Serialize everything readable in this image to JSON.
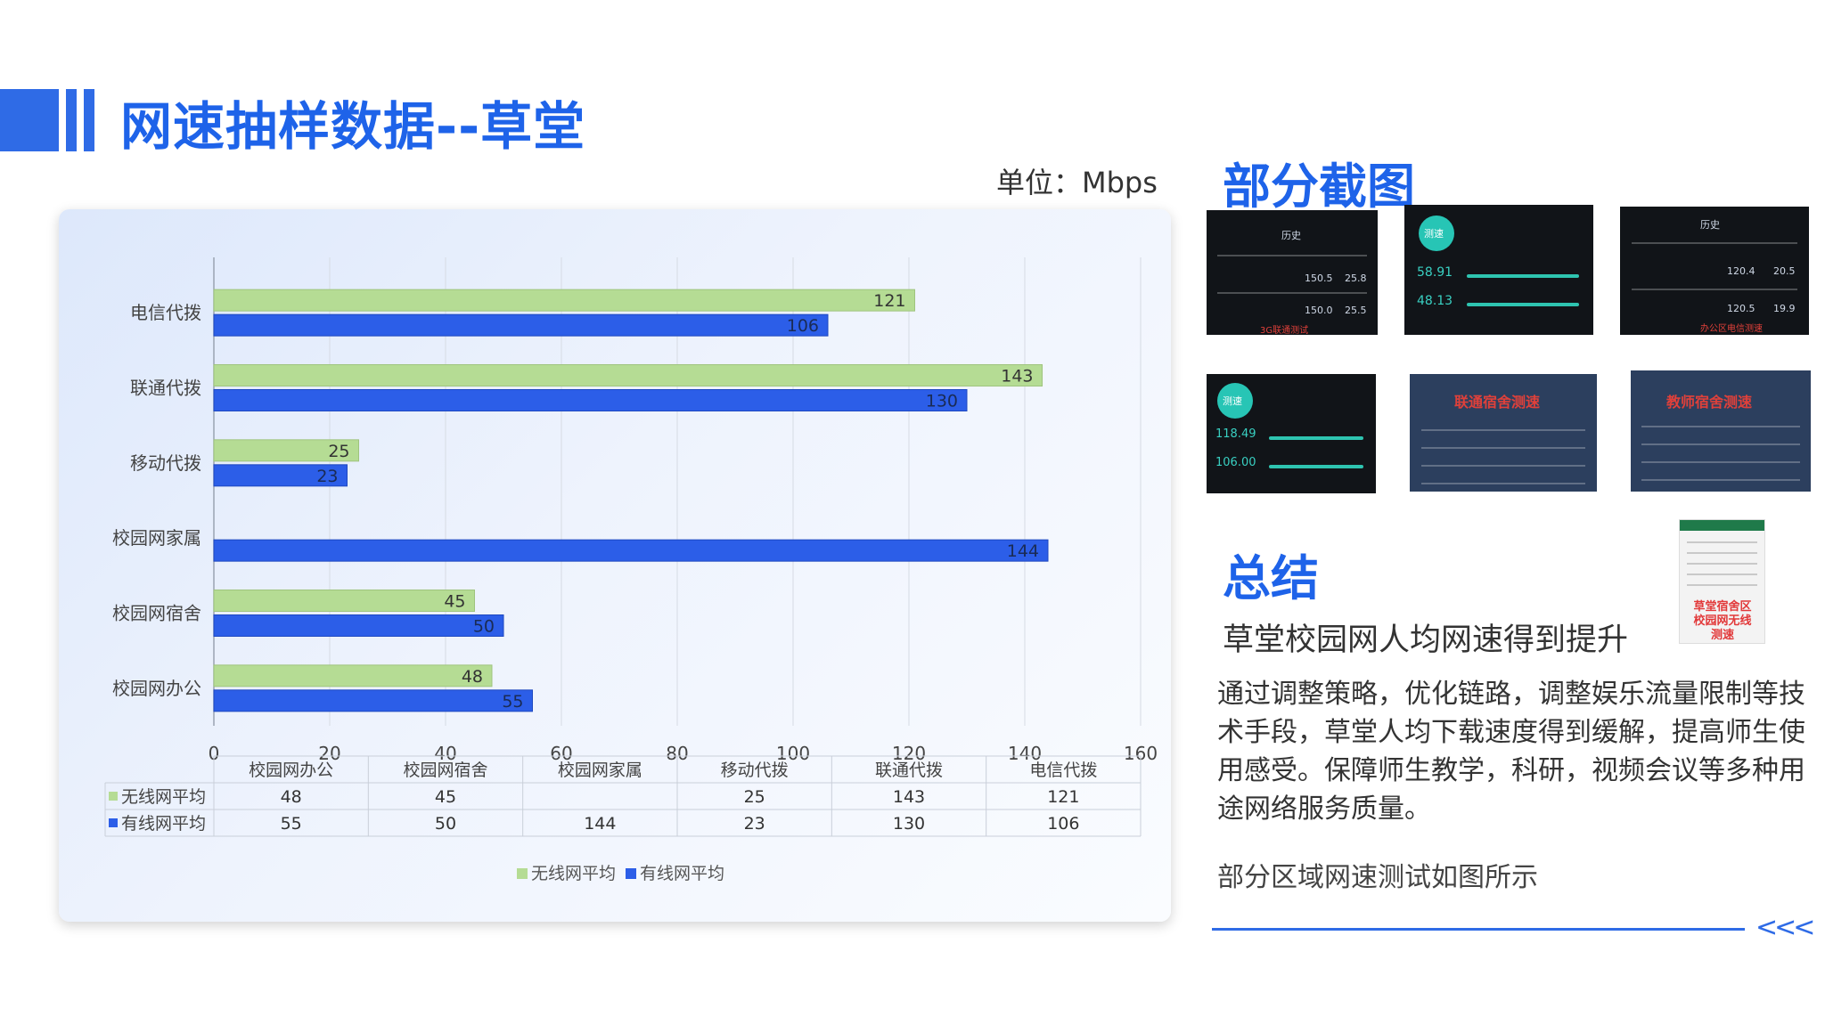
{
  "header": {
    "title": "网速抽样数据--草堂",
    "unit": "单位：Mbps"
  },
  "colors": {
    "accent": "#1e63e9",
    "wireless": "#b5dc94",
    "wired": "#2c5ee8"
  },
  "chart_data": {
    "type": "bar",
    "orientation": "horizontal",
    "categories": [
      "电信代拨",
      "联通代拨",
      "移动代拨",
      "校园网家属",
      "校园网宿舍",
      "校园网办公"
    ],
    "series": [
      {
        "name": "无线网平均",
        "values": [
          121,
          143,
          25,
          null,
          45,
          48
        ]
      },
      {
        "name": "有线网平均",
        "values": [
          106,
          130,
          23,
          144,
          50,
          55
        ]
      }
    ],
    "xlim": [
      0,
      160
    ],
    "xticks": [
      0,
      20,
      40,
      60,
      80,
      100,
      120,
      140,
      160
    ],
    "grid": true,
    "legend": "bottom",
    "data_table": {
      "columns": [
        "校园网办公",
        "校园网宿舍",
        "校园网家属",
        "移动代拨",
        "联通代拨",
        "电信代拨"
      ],
      "rows": [
        {
          "name": "无线网平均",
          "values": [
            "48",
            "45",
            "",
            "25",
            "143",
            "121"
          ]
        },
        {
          "name": "有线网平均",
          "values": [
            "55",
            "50",
            "144",
            "23",
            "130",
            "106"
          ]
        }
      ]
    }
  },
  "screenshots": {
    "title": "部分截图",
    "items": [
      {
        "texts": [
          "历史",
          "150.5",
          "25.8",
          "150.0",
          "25.5",
          "3G联通测试"
        ]
      },
      {
        "texts": [
          "测速",
          "58.91",
          "48.13"
        ]
      },
      {
        "texts": [
          "历史",
          "120.4",
          "20.5",
          "120.5",
          "19.9",
          "办公区电信测速"
        ]
      },
      {
        "texts": [
          "测速",
          "118.49",
          "106.00"
        ]
      },
      {
        "texts": [
          "联通宿舍测速"
        ]
      },
      {
        "texts": [
          "教师宿舍测速"
        ]
      }
    ],
    "phone_caption": "草堂宿舍区校园网无线测速"
  },
  "summary": {
    "title": "总结",
    "heading": "草堂校园网人均网速得到提升",
    "body": "通过调整策略，优化链路，调整娱乐流量限制等技术手段，草堂人均下载速度得到缓解，提高师生使用感受。保障师生教学，科研，视频会议等多种用途网络服务质量。",
    "note": "部分区域网速测试如图所示"
  }
}
